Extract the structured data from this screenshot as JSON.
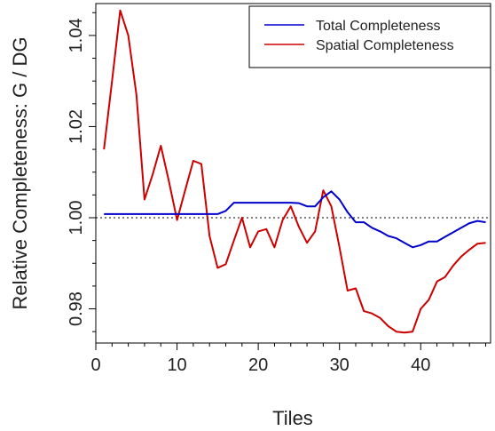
{
  "chart_data": {
    "type": "line",
    "xlabel": "Tiles",
    "ylabel": "Relative Completeness: G / DG",
    "xlim": [
      0,
      48.6
    ],
    "ylim": [
      0.9725,
      1.047
    ],
    "x_ticks": [
      0,
      10,
      20,
      30,
      40
    ],
    "y_ticks": [
      0.98,
      1.0,
      1.02,
      1.04
    ],
    "y_tick_labels": [
      "0.98",
      "1.00",
      "1.02",
      "1.04"
    ],
    "grid": false,
    "legend_position": "top-right",
    "reference_line": {
      "y": 1.0,
      "style": "dotted",
      "color": "#000000"
    },
    "series": [
      {
        "name": "Total Completeness",
        "color": "#0000cc",
        "x": [
          1,
          2,
          3,
          4,
          5,
          6,
          7,
          8,
          9,
          10,
          11,
          12,
          13,
          14,
          15,
          16,
          17,
          18,
          19,
          20,
          21,
          22,
          23,
          24,
          25,
          26,
          27,
          28,
          29,
          30,
          31,
          32,
          33,
          34,
          35,
          36,
          37,
          38,
          39,
          40,
          41,
          42,
          43,
          44,
          45,
          46,
          47,
          48
        ],
        "y": [
          1.0008,
          1.0008,
          1.0008,
          1.0008,
          1.0008,
          1.0008,
          1.0008,
          1.0008,
          1.0008,
          1.0008,
          1.0008,
          1.0008,
          1.0008,
          1.0008,
          1.0008,
          1.0015,
          1.0033,
          1.0033,
          1.0033,
          1.0033,
          1.0033,
          1.0033,
          1.0033,
          1.0033,
          1.0032,
          1.0025,
          1.0025,
          1.0045,
          1.0058,
          1.004,
          1.0012,
          0.999,
          0.999,
          0.9978,
          0.997,
          0.996,
          0.9955,
          0.9945,
          0.9935,
          0.994,
          0.9948,
          0.9948,
          0.9958,
          0.9968,
          0.9978,
          0.9988,
          0.9993,
          0.999
        ]
      },
      {
        "name": "Spatial Completeness",
        "color": "#cc0000",
        "x": [
          1,
          2,
          3,
          4,
          5,
          6,
          7,
          8,
          9,
          10,
          11,
          12,
          13,
          14,
          15,
          16,
          17,
          18,
          19,
          20,
          21,
          22,
          23,
          24,
          25,
          26,
          27,
          28,
          29,
          30,
          31,
          32,
          33,
          34,
          35,
          36,
          37,
          38,
          39,
          40,
          41,
          42,
          43,
          44,
          45,
          46,
          47,
          48
        ],
        "y": [
          1.015,
          1.03,
          1.0455,
          1.04,
          1.027,
          1.004,
          1.0095,
          1.0158,
          1.008,
          0.9995,
          1.006,
          1.0125,
          1.0118,
          0.996,
          0.989,
          0.9898,
          0.995,
          1.0,
          0.9935,
          0.997,
          0.9975,
          0.9935,
          0.9995,
          1.0025,
          0.998,
          0.9945,
          0.997,
          1.006,
          1.0025,
          0.9935,
          0.984,
          0.9845,
          0.9795,
          0.979,
          0.978,
          0.9762,
          0.975,
          0.9748,
          0.975,
          0.98,
          0.982,
          0.986,
          0.987,
          0.9895,
          0.9915,
          0.993,
          0.9943,
          0.9945
        ]
      }
    ]
  }
}
